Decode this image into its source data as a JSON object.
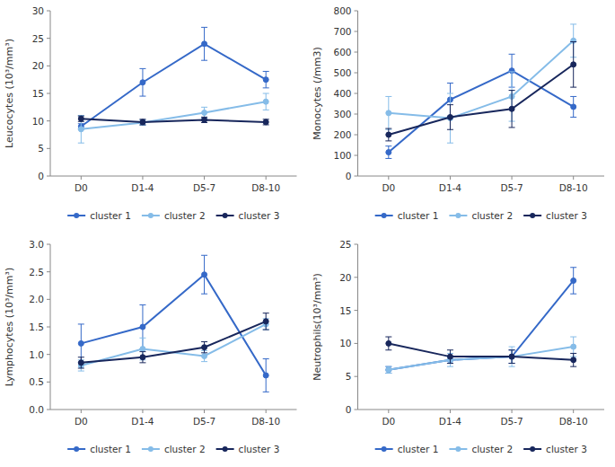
{
  "chart_data": [
    {
      "type": "line",
      "ylabel": "Leucocytes (10³/mm³)",
      "categories": [
        "D0",
        "D1-4",
        "D5-7",
        "D8-10"
      ],
      "ylim": [
        0,
        30
      ],
      "yticks": [
        0,
        5,
        10,
        15,
        20,
        25,
        30
      ],
      "grid": false,
      "legend": "bottom",
      "series": [
        {
          "name": "cluster 1",
          "color": "#3569c8",
          "marker": "circle",
          "values": [
            9.0,
            17.0,
            24.0,
            17.5
          ],
          "errors": [
            0.5,
            2.5,
            3.0,
            1.5
          ]
        },
        {
          "name": "cluster 2",
          "color": "#85bce8",
          "marker": "circle",
          "values": [
            8.5,
            9.7,
            11.5,
            13.5
          ],
          "errors": [
            2.5,
            0.5,
            1.0,
            1.5
          ]
        },
        {
          "name": "cluster 3",
          "color": "#18275c",
          "marker": "circle",
          "values": [
            10.4,
            9.8,
            10.2,
            9.8
          ],
          "errors": [
            0.5,
            0.5,
            0.5,
            0.5
          ]
        }
      ]
    },
    {
      "type": "line",
      "ylabel": "Monocytes (/mm3)",
      "categories": [
        "D0",
        "D1-4",
        "D5-7",
        "D8-10"
      ],
      "ylim": [
        0,
        800
      ],
      "yticks": [
        0,
        100,
        200,
        300,
        400,
        500,
        600,
        700,
        800
      ],
      "grid": false,
      "legend": "bottom",
      "series": [
        {
          "name": "cluster 1",
          "color": "#3569c8",
          "marker": "circle",
          "values": [
            115,
            370,
            510,
            335
          ],
          "errors": [
            30,
            80,
            80,
            50
          ]
        },
        {
          "name": "cluster 2",
          "color": "#85bce8",
          "marker": "circle",
          "values": [
            305,
            280,
            385,
            655
          ],
          "errors": [
            80,
            120,
            120,
            80
          ]
        },
        {
          "name": "cluster 3",
          "color": "#18275c",
          "marker": "circle",
          "values": [
            200,
            285,
            325,
            540
          ],
          "errors": [
            30,
            60,
            90,
            110
          ]
        }
      ]
    },
    {
      "type": "line",
      "ylabel": "Lymphocytes (10³/mm³)",
      "categories": [
        "D0",
        "D1-4",
        "D5-7",
        "D8-10"
      ],
      "ylim": [
        0,
        3.0
      ],
      "yticks": [
        {
          "value": 0,
          "label": "0.0"
        },
        0.5,
        {
          "value": 1.0,
          "label": "1.0"
        },
        1.5,
        {
          "value": 2.0,
          "label": "2.0"
        },
        2.5,
        {
          "value": 3.0,
          "label": "3.0"
        }
      ],
      "grid": false,
      "legend": "bottom",
      "series": [
        {
          "name": "cluster 1",
          "color": "#3569c8",
          "marker": "circle",
          "values": [
            1.2,
            1.5,
            2.45,
            0.62
          ],
          "errors": [
            0.35,
            0.4,
            0.35,
            0.3
          ]
        },
        {
          "name": "cluster 2",
          "color": "#85bce8",
          "marker": "circle",
          "values": [
            0.8,
            1.1,
            0.97,
            1.55
          ],
          "errors": [
            0.1,
            0.2,
            0.1,
            0.1
          ]
        },
        {
          "name": "cluster 3",
          "color": "#18275c",
          "marker": "circle",
          "values": [
            0.85,
            0.95,
            1.13,
            1.6
          ],
          "errors": [
            0.1,
            0.1,
            0.1,
            0.15
          ]
        }
      ]
    },
    {
      "type": "line",
      "ylabel": "Neutrophils(10³/mm³)",
      "categories": [
        "D0",
        "D1-4",
        "D5-7",
        "D8-10"
      ],
      "ylim": [
        0,
        25
      ],
      "yticks": [
        0,
        5,
        10,
        15,
        20,
        25
      ],
      "grid": false,
      "legend": "bottom",
      "series": [
        {
          "name": "cluster 1",
          "color": "#3569c8",
          "marker": "circle",
          "values": [
            6.0,
            7.5,
            8.0,
            19.5
          ],
          "errors": [
            0.5,
            0.5,
            1.0,
            2.0
          ]
        },
        {
          "name": "cluster 2",
          "color": "#85bce8",
          "marker": "circle",
          "values": [
            6.0,
            7.5,
            8.0,
            9.5
          ],
          "errors": [
            0.5,
            1.0,
            1.5,
            1.5
          ]
        },
        {
          "name": "cluster 3",
          "color": "#18275c",
          "marker": "circle",
          "values": [
            10.0,
            8.0,
            8.0,
            7.5
          ],
          "errors": [
            1.0,
            1.0,
            1.0,
            1.0
          ]
        }
      ]
    }
  ]
}
